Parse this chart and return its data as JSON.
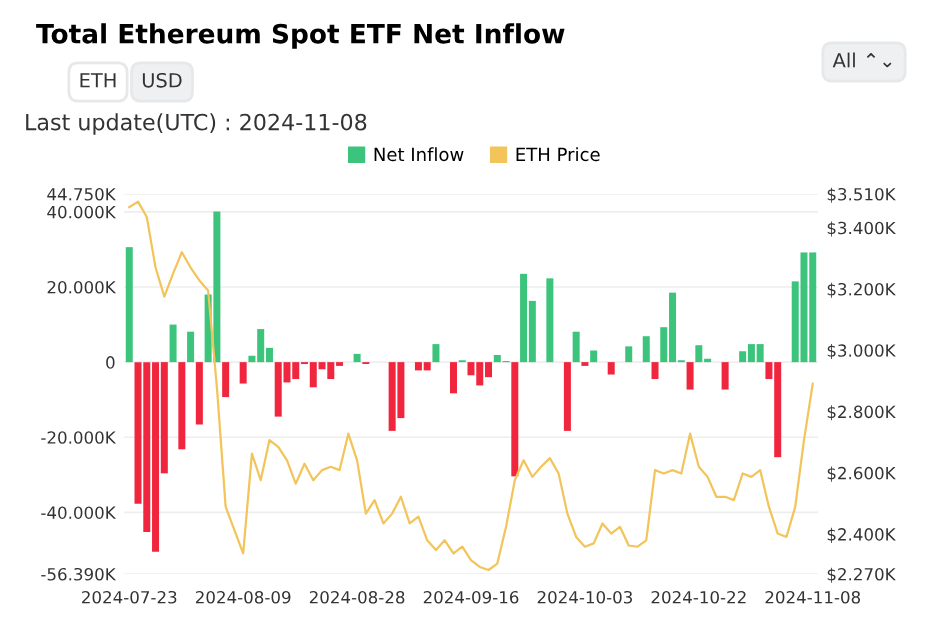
{
  "chart_data": {
    "type": "bar",
    "title": "Total Ethereum Spot ETF Net Inflow",
    "annotations": [
      "ETH",
      "USD",
      "Last update(UTC) : 2024-11-08",
      "All ⌃⌄"
    ],
    "categories": [
      "2024-07-23",
      null,
      null,
      null,
      null,
      null,
      null,
      null,
      null,
      null,
      null,
      null,
      null,
      "2024-08-09",
      null,
      null,
      null,
      null,
      null,
      null,
      null,
      null,
      null,
      null,
      null,
      null,
      "2024-08-28",
      null,
      null,
      null,
      null,
      null,
      null,
      null,
      null,
      null,
      null,
      null,
      null,
      "2024-09-16",
      null,
      null,
      null,
      null,
      null,
      null,
      null,
      null,
      null,
      null,
      null,
      null,
      "2024-10-03",
      null,
      null,
      null,
      null,
      null,
      null,
      null,
      null,
      null,
      null,
      null,
      null,
      "2024-10-22",
      null,
      null,
      null,
      null,
      null,
      null,
      null,
      null,
      null,
      null,
      null,
      null,
      "2024-11-08"
    ],
    "series": [
      {
        "name": "Net Inflow",
        "color": "#3cc47c",
        "colors": [
          "#3cc47c",
          "#f0263f",
          "#f0263f",
          "#f0263f",
          "#f0263f",
          "#3cc47c",
          "#f0263f",
          "#3cc47c",
          "#f0263f",
          "#3cc47c",
          "#3cc47c",
          "#f0263f",
          "#3cc47c",
          "#f0263f",
          "#3cc47c",
          "#3cc47c",
          "#3cc47c",
          "#f0263f",
          "#f0263f",
          "#f0263f",
          "#f0263f",
          "#f0263f",
          "#f0263f",
          "#f0263f",
          "#f0263f",
          "#3cc47c",
          "#3cc47c",
          "#f0263f",
          "#3cc47c",
          "#3cc47c",
          "#f0263f",
          "#f0263f",
          "#3cc47c",
          "#f0263f",
          "#f0263f",
          "#3cc47c",
          "#3cc47c",
          "#f0263f",
          "#3cc47c",
          "#f0263f",
          "#f0263f",
          "#f0263f",
          "#3cc47c",
          "#3cc47c",
          "#f0263f",
          "#3cc47c",
          "#3cc47c",
          "#3cc47c",
          "#3cc47c",
          "#3cc47c",
          "#f0263f",
          "#3cc47c",
          "#f0263f",
          "#3cc47c",
          "#3cc47c",
          "#f0263f",
          "#3cc47c",
          "#3cc47c",
          "#3cc47c",
          "#3cc47c",
          "#f0263f",
          "#3cc47c",
          "#3cc47c",
          "#3cc47c",
          "#f0263f",
          "#3cc47c",
          "#3cc47c",
          "#3cc47c",
          "#f0263f",
          "#3cc47c",
          "#3cc47c",
          "#3cc47c",
          "#3cc47c",
          "#f0263f",
          "#f0263f",
          "#3cc47c",
          "#3cc47c",
          "#3cc47c",
          "#3cc47c"
        ],
        "values": [
          30600,
          -37700,
          -45200,
          -50500,
          -29600,
          10000,
          -23200,
          8100,
          -16600,
          18000,
          40100,
          -9300,
          0,
          -5700,
          1700,
          8800,
          3800,
          -14500,
          -5400,
          -4500,
          -500,
          -6700,
          -1900,
          -4500,
          -1000,
          0,
          2200,
          -500,
          0,
          0,
          -18300,
          -14900,
          0,
          -2200,
          -2200,
          4800,
          0,
          -8300,
          500,
          -3500,
          -6200,
          -4000,
          1900,
          300,
          -30400,
          23500,
          16300,
          0,
          22300,
          0,
          -18300,
          8100,
          -1000,
          3100,
          0,
          -3300,
          0,
          4200,
          0,
          6900,
          -4500,
          9300,
          18500,
          500,
          -7300,
          4500,
          900,
          0,
          -7300,
          0,
          2900,
          4800,
          4800,
          -4500,
          -25300,
          0,
          21500,
          29200,
          29200
        ]
      },
      {
        "name": "ETH Price",
        "type": "line",
        "axis": "y2",
        "color": "#f2c45a",
        "values": [
          3467,
          3485,
          3435,
          3270,
          3175,
          3250,
          3320,
          3270,
          3228,
          3195,
          2880,
          2490,
          2413,
          2337,
          2663,
          2576,
          2707,
          2685,
          2641,
          2565,
          2630,
          2576,
          2609,
          2620,
          2609,
          2728,
          2641,
          2467,
          2511,
          2435,
          2467,
          2522,
          2435,
          2457,
          2380,
          2348,
          2380,
          2337,
          2359,
          2315,
          2293,
          2283,
          2304,
          2424,
          2576,
          2641,
          2587,
          2620,
          2648,
          2598,
          2467,
          2391,
          2359,
          2370,
          2435,
          2402,
          2424,
          2363,
          2359,
          2380,
          2609,
          2598,
          2609,
          2598,
          2728,
          2620,
          2587,
          2522,
          2522,
          2511,
          2598,
          2587,
          2609,
          2489,
          2402,
          2391,
          2489,
          2707,
          2891
        ]
      }
    ],
    "ylim": [
      -56390,
      44750
    ],
    "yticks": [
      {
        "value": -56390,
        "label": "-56.390K"
      },
      {
        "value": -40000,
        "label": "-40.000K"
      },
      {
        "value": -20000,
        "label": "-20.000K"
      },
      0,
      {
        "value": 20000,
        "label": "20.000K"
      },
      {
        "value": 40000,
        "label": "40.000K"
      },
      {
        "value": 44750,
        "label": "44.750K"
      }
    ],
    "y2lim": [
      2270,
      3510
    ],
    "y2ticks": [
      {
        "value": 2270,
        "label": "$2.270K"
      },
      {
        "value": 2400,
        "label": "$2.400K"
      },
      {
        "value": 2600,
        "label": "$2.600K"
      },
      {
        "value": 2800,
        "label": "$2.800K"
      },
      {
        "value": 3000,
        "label": "$3.000K"
      },
      {
        "value": 3200,
        "label": "$3.200K"
      },
      {
        "value": 3400,
        "label": "$3.400K"
      },
      {
        "value": 3510,
        "label": "$3.510K"
      }
    ],
    "grid": "y",
    "legend": "top",
    "marker": "none",
    "line_style": "solid"
  }
}
